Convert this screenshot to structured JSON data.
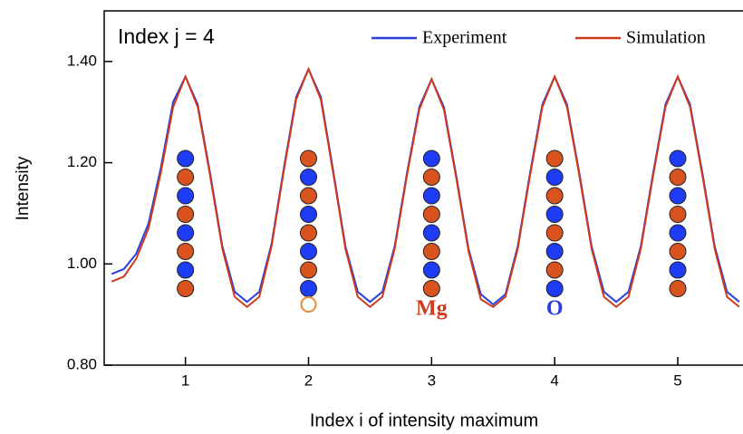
{
  "chart_data": {
    "type": "line",
    "title": "Index j = 4",
    "xlabel": "Index i of intensity maximum",
    "ylabel": "Intensity",
    "x": [
      0.4,
      0.5,
      0.6,
      0.7,
      0.8,
      0.9,
      1.0,
      1.1,
      1.2,
      1.3,
      1.4,
      1.5,
      1.6,
      1.7,
      1.8,
      1.9,
      2.0,
      2.1,
      2.2,
      2.3,
      2.4,
      2.5,
      2.6,
      2.7,
      2.8,
      2.9,
      3.0,
      3.1,
      3.2,
      3.3,
      3.4,
      3.5,
      3.6,
      3.7,
      3.8,
      3.9,
      4.0,
      4.1,
      4.2,
      4.3,
      4.4,
      4.5,
      4.6,
      4.7,
      4.8,
      4.9,
      5.0,
      5.1,
      5.2,
      5.3,
      5.4,
      5.5
    ],
    "series": [
      {
        "name": "Experiment",
        "color": "#2a3fe0",
        "values": [
          0.98,
          0.99,
          1.02,
          1.08,
          1.19,
          1.32,
          1.37,
          1.315,
          1.18,
          1.035,
          0.945,
          0.925,
          0.945,
          1.04,
          1.19,
          1.33,
          1.385,
          1.33,
          1.185,
          1.035,
          0.945,
          0.925,
          0.945,
          1.035,
          1.18,
          1.31,
          1.365,
          1.31,
          1.175,
          1.03,
          0.94,
          0.92,
          0.94,
          1.035,
          1.18,
          1.315,
          1.37,
          1.315,
          1.18,
          1.035,
          0.945,
          0.925,
          0.945,
          1.035,
          1.18,
          1.315,
          1.37,
          1.315,
          1.18,
          1.035,
          0.945,
          0.925
        ]
      },
      {
        "name": "Simulation",
        "color": "#d03a1a",
        "values": [
          0.965,
          0.975,
          1.01,
          1.07,
          1.18,
          1.31,
          1.37,
          1.31,
          1.175,
          1.03,
          0.935,
          0.915,
          0.935,
          1.035,
          1.185,
          1.325,
          1.385,
          1.325,
          1.18,
          1.03,
          0.935,
          0.915,
          0.935,
          1.03,
          1.175,
          1.305,
          1.365,
          1.305,
          1.17,
          1.025,
          0.93,
          0.915,
          0.935,
          1.03,
          1.175,
          1.31,
          1.37,
          1.31,
          1.175,
          1.03,
          0.935,
          0.915,
          0.935,
          1.03,
          1.175,
          1.31,
          1.37,
          1.31,
          1.175,
          1.03,
          0.935,
          0.915
        ]
      }
    ],
    "xlim": [
      0.34,
      5.53
    ],
    "ylim": [
      0.8,
      1.5
    ],
    "xticks": [
      1,
      2,
      3,
      4,
      5
    ],
    "yticks": [
      {
        "value": 0.8,
        "label": "0.80"
      },
      {
        "value": 1.0,
        "label": "1.00"
      },
      {
        "value": 1.2,
        "label": "1.20"
      },
      {
        "value": 1.4,
        "label": "1.40"
      }
    ],
    "annotations": [
      {
        "text": "Mg",
        "x": 3,
        "color": "#d03a1a"
      },
      {
        "text": "O",
        "x": 4,
        "color": "#2a3fe0"
      }
    ]
  }
}
